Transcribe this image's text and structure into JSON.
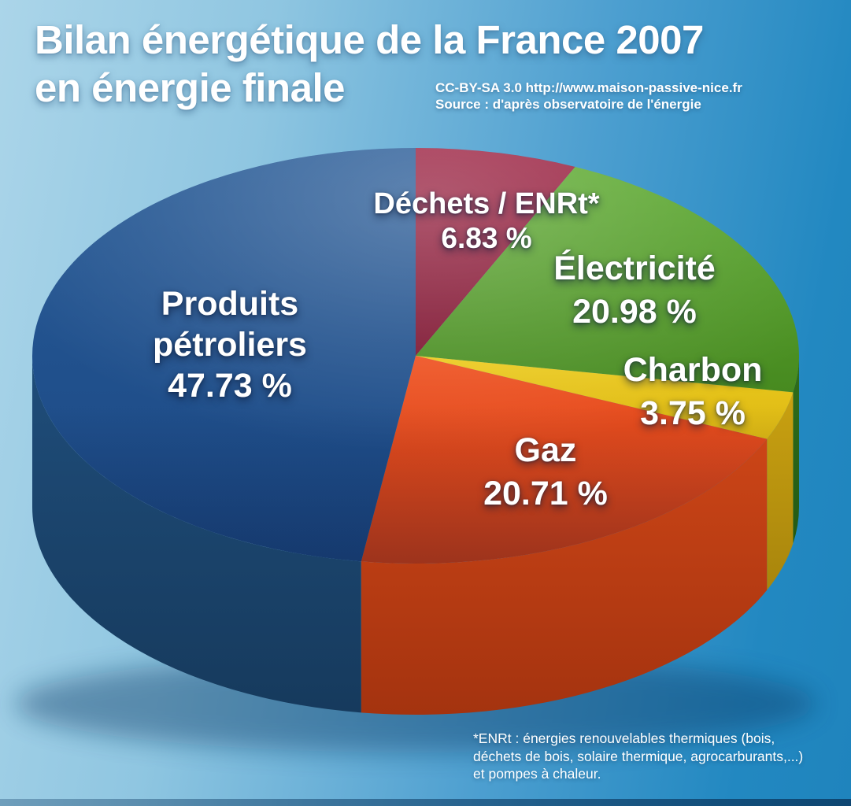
{
  "title": {
    "line1": "Bilan énergétique de la France 2007",
    "line2": "en énergie finale"
  },
  "credit": {
    "line1": "CC-BY-SA 3.0 http://www.maison-passive-nice.fr",
    "line2": "Source : d'après observatoire de l'énergie"
  },
  "footnote": {
    "line1": "*ENRt : énergies renouvelables thermiques (bois,",
    "line2": "déchets de bois, solaire thermique, agrocarburants,...)",
    "line3": "et pompes à chaleur."
  },
  "background": {
    "gradient_left": "#abd5e9",
    "gradient_right": "#1f84bd",
    "bottom_strip": "#12507c"
  },
  "chart_data": {
    "type": "pie",
    "style": "3d-exploded-none",
    "title": "Bilan énergétique de la France 2007 en énergie finale",
    "unit": "%",
    "start_angle_deg": 0,
    "direction": "clockwise",
    "legend_position": "labels-on-chart",
    "segments": [
      {
        "label": "Déchets / ENRt*",
        "value": 6.83,
        "display": "6.83 %",
        "color_top": "#9b2040",
        "color_bottom": "#7c1430",
        "wall_top": "#6b0f27",
        "wall_bottom": "#570b1f"
      },
      {
        "label": "Électricité",
        "value": 20.98,
        "display": "20.98 %",
        "color_top": "#5ca92f",
        "color_bottom": "#478a20",
        "wall_top": "#2f6e1c",
        "wall_bottom": "#245a14"
      },
      {
        "label": "Charbon",
        "value": 3.75,
        "display": "3.75 %",
        "color_top": "#eccb1e",
        "color_bottom": "#dcb713",
        "wall_top": "#c9a111",
        "wall_bottom": "#a8850c"
      },
      {
        "label": "Gaz",
        "value": 20.71,
        "display": "20.71 %",
        "color_top": "#ef5120",
        "color_bottom": "#d24016",
        "wall_top": "#cc4517",
        "wall_bottom": "#a4330f"
      },
      {
        "label": "Produits pétroliers",
        "lines": [
          "Produits",
          "pétroliers"
        ],
        "value": 47.73,
        "display": "47.73 %",
        "color_top": "#275a96",
        "color_bottom": "#1b4884",
        "wall_top": "#1f4d7a",
        "wall_bottom": "#163a5d"
      }
    ]
  }
}
